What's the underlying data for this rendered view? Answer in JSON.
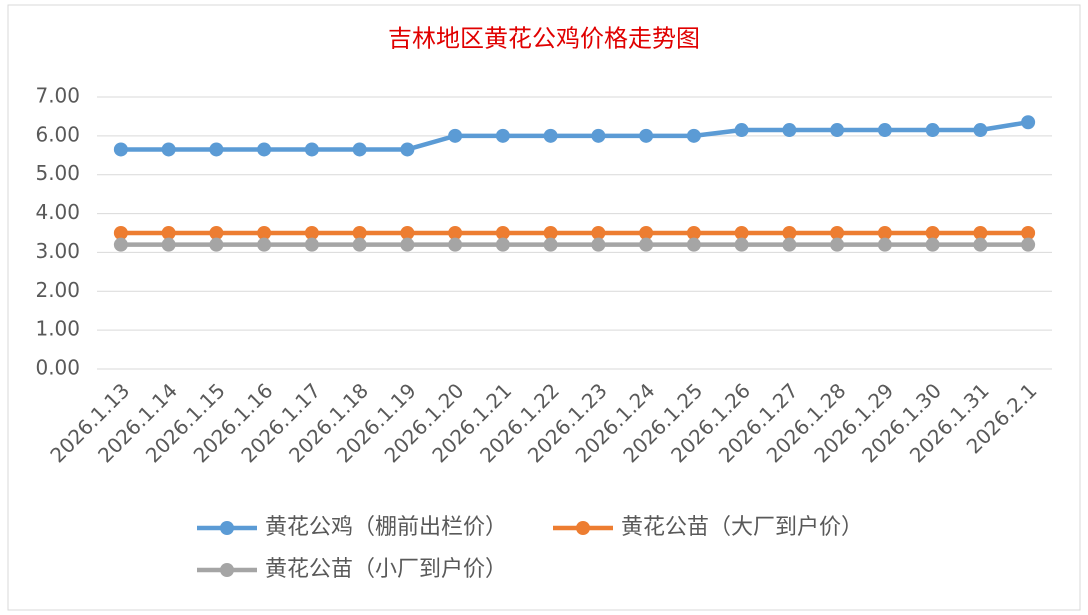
{
  "chart_data": {
    "type": "line",
    "title": "吉林地区黄花公鸡价格走势图",
    "categories": [
      "2026.1.13",
      "2026.1.14",
      "2026.1.15",
      "2026.1.16",
      "2026.1.17",
      "2026.1.18",
      "2026.1.19",
      "2026.1.20",
      "2026.1.21",
      "2026.1.22",
      "2026.1.23",
      "2026.1.24",
      "2026.1.25",
      "2026.1.26",
      "2026.1.27",
      "2026.1.28",
      "2026.1.29",
      "2026.1.30",
      "2026.1.31",
      "2026.2.1"
    ],
    "series": [
      {
        "name": "黄花公鸡（棚前出栏价）",
        "color": "#5b9bd5",
        "values": [
          5.65,
          5.65,
          5.65,
          5.65,
          5.65,
          5.65,
          5.65,
          6.0,
          6.0,
          6.0,
          6.0,
          6.0,
          6.0,
          6.15,
          6.15,
          6.15,
          6.15,
          6.15,
          6.15,
          6.35
        ]
      },
      {
        "name": "黄花公苗（大厂到户价）",
        "color": "#ed7d31",
        "values": [
          3.5,
          3.5,
          3.5,
          3.5,
          3.5,
          3.5,
          3.5,
          3.5,
          3.5,
          3.5,
          3.5,
          3.5,
          3.5,
          3.5,
          3.5,
          3.5,
          3.5,
          3.5,
          3.5,
          3.5
        ]
      },
      {
        "name": "黄花公苗（小厂到户价）",
        "color": "#a5a5a5",
        "values": [
          3.2,
          3.2,
          3.2,
          3.2,
          3.2,
          3.2,
          3.2,
          3.2,
          3.2,
          3.2,
          3.2,
          3.2,
          3.2,
          3.2,
          3.2,
          3.2,
          3.2,
          3.2,
          3.2,
          3.2
        ]
      }
    ],
    "ylim": [
      0,
      7
    ],
    "yticks": [
      {
        "value": 0,
        "label": "0.00"
      },
      {
        "value": 1,
        "label": "1.00"
      },
      {
        "value": 2,
        "label": "2.00"
      },
      {
        "value": 3,
        "label": "3.00"
      },
      {
        "value": 4,
        "label": "4.00"
      },
      {
        "value": 5,
        "label": "5.00"
      },
      {
        "value": 6,
        "label": "6.00"
      },
      {
        "value": 7,
        "label": "7.00"
      }
    ],
    "grid": true,
    "legend": "bottom"
  }
}
